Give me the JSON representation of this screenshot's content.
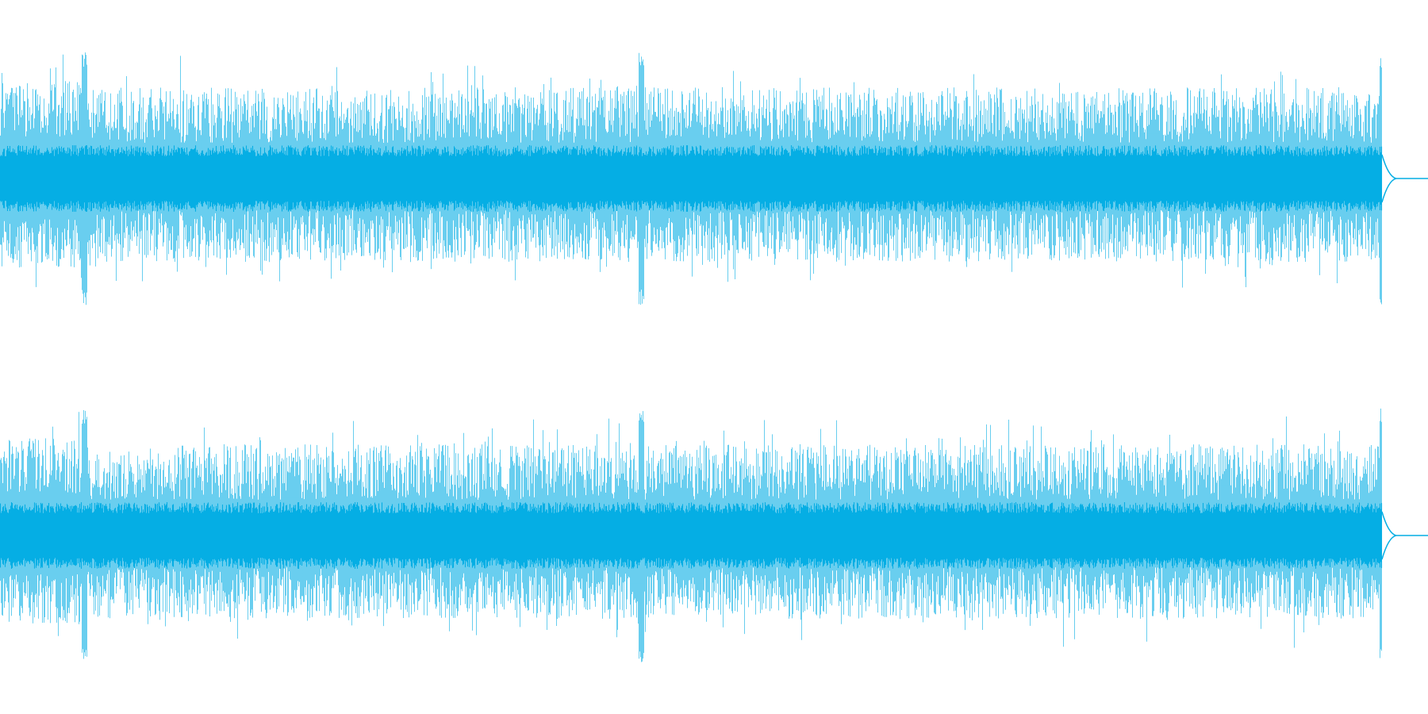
{
  "waveform": {
    "color": "#05aee4",
    "background": "#ffffff",
    "channels": [
      {
        "id": "left",
        "label": ""
      },
      {
        "id": "right",
        "label": ""
      }
    ],
    "audio_end_fraction": 0.968,
    "transients_fraction": [
      0.059,
      0.449,
      0.968
    ]
  }
}
